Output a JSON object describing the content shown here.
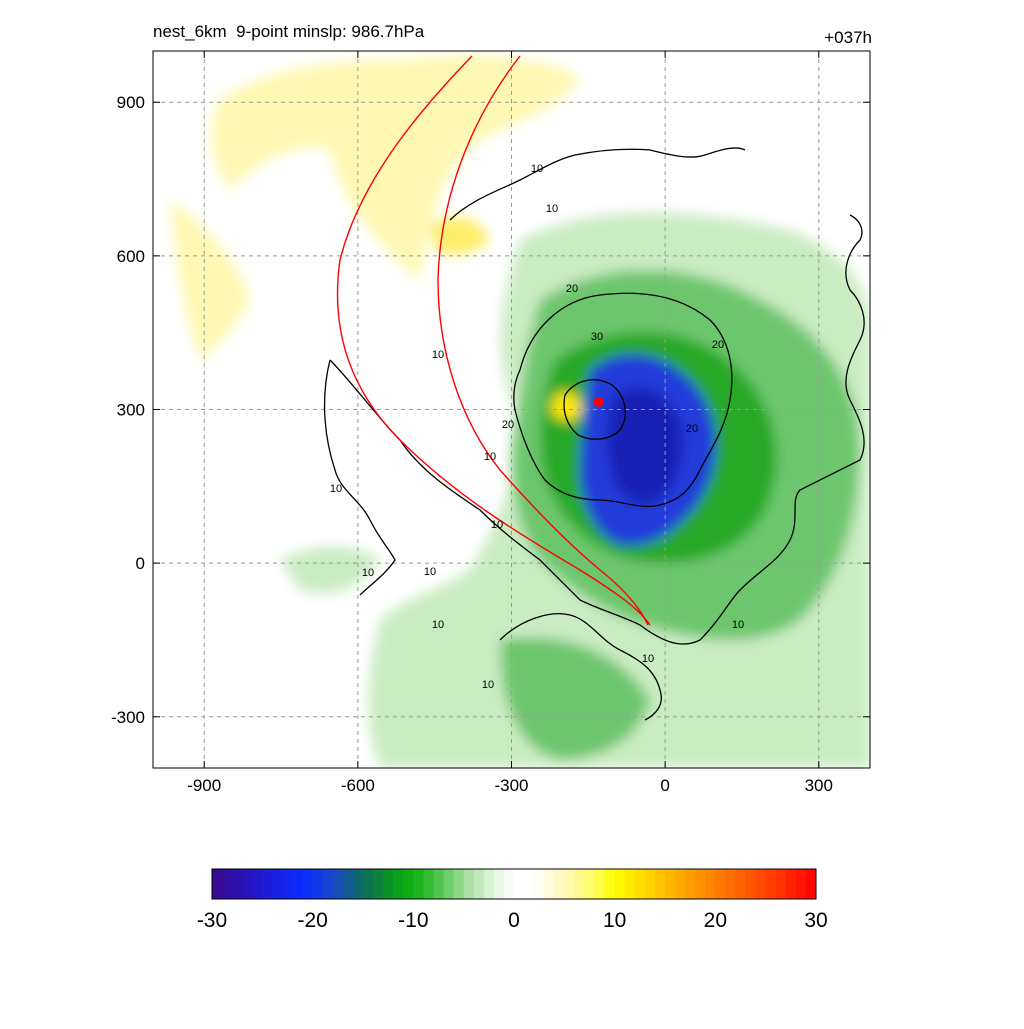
{
  "header": {
    "title_left": "nest_6km  9-point minslp: 986.7hPa",
    "title_right": "+037h"
  },
  "chart_data": {
    "type": "heatmap",
    "xlim": [
      -1000,
      400
    ],
    "ylim": [
      -400,
      1000
    ],
    "x_ticks": [
      -900,
      -600,
      -300,
      0,
      300
    ],
    "y_ticks": [
      -300,
      0,
      300,
      600,
      900
    ],
    "grid": true,
    "grid_style": "dashed gray",
    "colorbar": {
      "orientation": "horizontal",
      "range": [
        -30,
        30
      ],
      "tick_values": [
        -30,
        -20,
        -10,
        0,
        10,
        20,
        30
      ],
      "tick_labels": [
        "-30",
        "-20",
        "-10",
        "0",
        "10",
        "20",
        "30"
      ]
    },
    "contour_levels": [
      10,
      20,
      30
    ],
    "contour_labels": [
      "10",
      "10",
      "10",
      "10",
      "10",
      "10",
      "10",
      "10",
      "10",
      "10",
      "10",
      "10",
      "20",
      "20",
      "20",
      "20",
      "30"
    ],
    "storm_center": {
      "x": -130,
      "y": 315
    },
    "colors": {
      "strong_negative": "#1530d8",
      "moderate_negative": "#1aa61a",
      "weak_negative": "#a8dca0",
      "weak_positive": "#fff8a8",
      "contour": "#000000",
      "track": "#ff0000",
      "center_marker": "#ff0000"
    }
  }
}
